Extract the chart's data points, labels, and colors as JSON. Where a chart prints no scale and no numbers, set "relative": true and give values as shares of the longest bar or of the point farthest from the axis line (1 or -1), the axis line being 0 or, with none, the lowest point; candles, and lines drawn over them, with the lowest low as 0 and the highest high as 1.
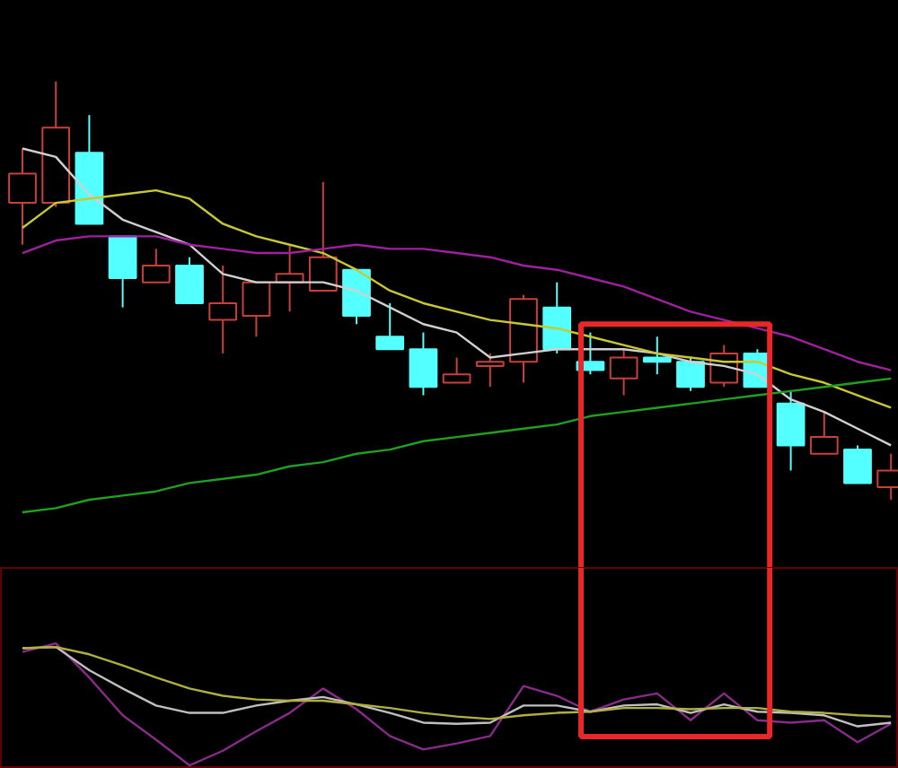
{
  "chart_data": [
    {
      "type": "candlestick",
      "relative": true,
      "categories": [
        null,
        null,
        null,
        null,
        null,
        null,
        null,
        null,
        null,
        null,
        null,
        null,
        null,
        null,
        null,
        null,
        null,
        null,
        null,
        null,
        null,
        null,
        null,
        null,
        null,
        null,
        null
      ],
      "ohlc": [
        [
          0.71,
          0.84,
          0.61,
          0.78
        ],
        [
          0.71,
          1.0,
          0.7,
          0.89
        ],
        [
          0.83,
          0.92,
          0.66,
          0.66
        ],
        [
          0.63,
          0.63,
          0.46,
          0.53
        ],
        [
          0.52,
          0.6,
          0.52,
          0.56
        ],
        [
          0.56,
          0.58,
          0.47,
          0.47
        ],
        [
          0.43,
          0.56,
          0.35,
          0.47
        ],
        [
          0.44,
          0.52,
          0.39,
          0.52
        ],
        [
          0.52,
          0.61,
          0.45,
          0.54
        ],
        [
          0.5,
          0.76,
          0.5,
          0.58
        ],
        [
          0.55,
          0.55,
          0.42,
          0.44
        ],
        [
          0.39,
          0.47,
          0.36,
          0.36
        ],
        [
          0.36,
          0.4,
          0.25,
          0.27
        ],
        [
          0.28,
          0.34,
          0.28,
          0.3
        ],
        [
          0.32,
          0.35,
          0.27,
          0.33
        ],
        [
          0.33,
          0.49,
          0.28,
          0.48
        ],
        [
          0.46,
          0.52,
          0.35,
          0.36
        ],
        [
          0.33,
          0.4,
          0.3,
          0.31
        ],
        [
          0.29,
          0.36,
          0.25,
          0.34
        ],
        [
          0.34,
          0.39,
          0.3,
          0.33
        ],
        [
          0.33,
          0.34,
          0.26,
          0.27
        ],
        [
          0.28,
          0.37,
          0.27,
          0.35
        ],
        [
          0.35,
          0.36,
          0.27,
          0.27
        ],
        [
          0.23,
          0.26,
          0.07,
          0.13
        ],
        [
          0.11,
          0.21,
          0.11,
          0.15
        ],
        [
          0.12,
          0.13,
          0.04,
          0.04
        ],
        [
          0.03,
          0.11,
          0.0,
          0.07
        ]
      ],
      "colors": [
        "#c8403c",
        "#c8403c",
        "#54ffff",
        "#54ffff",
        "#c8403c",
        "#54ffff",
        "#c8403c",
        "#c8403c",
        "#c8403c",
        "#c8403c",
        "#54ffff",
        "#54ffff",
        "#54ffff",
        "#c8403c",
        "#c8403c",
        "#c8403c",
        "#54ffff",
        "#54ffff",
        "#c8403c",
        "#54ffff",
        "#54ffff",
        "#c8403c",
        "#54ffff",
        "#54ffff",
        "#c8403c",
        "#54ffff",
        "#c8403c"
      ],
      "series": [
        {
          "type": "line",
          "color": "#d0d0d0",
          "values": [
            0.84,
            0.82,
            0.73,
            0.67,
            0.64,
            0.61,
            0.54,
            0.52,
            0.52,
            0.52,
            0.5,
            0.46,
            0.42,
            0.4,
            0.34,
            0.35,
            0.36,
            0.36,
            0.36,
            0.35,
            0.33,
            0.32,
            0.3,
            0.24,
            0.21,
            0.17,
            0.13
          ]
        },
        {
          "type": "line",
          "color": "#c8c832",
          "values": [
            0.65,
            0.71,
            0.72,
            0.73,
            0.74,
            0.72,
            0.66,
            0.63,
            0.61,
            0.59,
            0.55,
            0.5,
            0.47,
            0.45,
            0.43,
            0.42,
            0.41,
            0.39,
            0.37,
            0.35,
            0.34,
            0.33,
            0.33,
            0.3,
            0.28,
            0.25,
            0.22
          ]
        },
        {
          "type": "line",
          "color": "#a020a0",
          "values": [
            0.59,
            0.62,
            0.63,
            0.63,
            0.63,
            0.61,
            0.6,
            0.59,
            0.59,
            0.6,
            0.61,
            0.6,
            0.6,
            0.59,
            0.58,
            0.56,
            0.55,
            0.53,
            0.51,
            0.48,
            0.45,
            0.43,
            0.41,
            0.39,
            0.36,
            0.33,
            0.31
          ]
        },
        {
          "type": "line",
          "color": "#20a020",
          "values": [
            -0.03,
            -0.02,
            0.0,
            0.01,
            0.02,
            0.04,
            0.05,
            0.06,
            0.08,
            0.09,
            0.11,
            0.12,
            0.14,
            0.15,
            0.16,
            0.17,
            0.18,
            0.2,
            0.21,
            0.22,
            0.23,
            0.24,
            0.25,
            0.26,
            0.27,
            0.28,
            0.29
          ]
        }
      ]
    },
    {
      "type": "line",
      "relative": true,
      "categories": [
        null,
        null,
        null,
        null,
        null,
        null,
        null,
        null,
        null,
        null,
        null,
        null,
        null,
        null,
        null,
        null,
        null,
        null,
        null,
        null,
        null,
        null,
        null,
        null,
        null,
        null,
        null
      ],
      "series": [
        {
          "color": "#8a2a8a",
          "values": [
            0.93,
            1.0,
            0.72,
            0.41,
            0.21,
            0.0,
            0.12,
            0.28,
            0.43,
            0.63,
            0.46,
            0.24,
            0.13,
            0.18,
            0.24,
            0.65,
            0.57,
            0.44,
            0.54,
            0.59,
            0.37,
            0.59,
            0.37,
            0.35,
            0.37,
            0.19,
            0.34
          ]
        },
        {
          "color": "#c0c0c0",
          "values": [
            0.96,
            0.97,
            0.78,
            0.63,
            0.49,
            0.43,
            0.43,
            0.49,
            0.53,
            0.56,
            0.5,
            0.43,
            0.35,
            0.34,
            0.35,
            0.49,
            0.49,
            0.44,
            0.49,
            0.5,
            0.43,
            0.5,
            0.44,
            0.43,
            0.41,
            0.32,
            0.35
          ]
        },
        {
          "color": "#b0b040",
          "values": [
            0.96,
            0.97,
            0.91,
            0.82,
            0.72,
            0.63,
            0.57,
            0.54,
            0.53,
            0.53,
            0.5,
            0.47,
            0.43,
            0.4,
            0.38,
            0.41,
            0.43,
            0.44,
            0.47,
            0.47,
            0.46,
            0.47,
            0.47,
            0.44,
            0.43,
            0.41,
            0.4
          ]
        }
      ]
    }
  ]
}
